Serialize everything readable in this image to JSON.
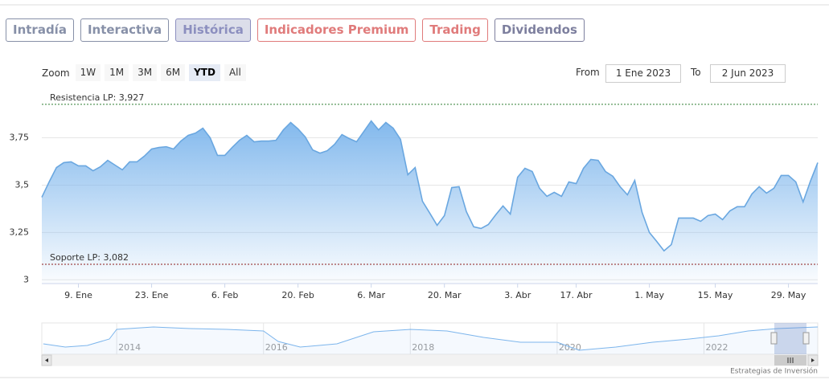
{
  "tabs": [
    {
      "label": "Intradía",
      "color": "#8790a8",
      "active": false
    },
    {
      "label": "Interactiva",
      "color": "#8790a8",
      "active": false
    },
    {
      "label": "Histórica",
      "color": "#8c8fbf",
      "active": true
    },
    {
      "label": "Indicadores Premium",
      "color": "#e07b7b",
      "active": false
    },
    {
      "label": "Trading",
      "color": "#e07b7b",
      "active": false
    },
    {
      "label": "Dividendos",
      "color": "#7d7f9e",
      "active": false
    }
  ],
  "zoom": {
    "label": "Zoom",
    "buttons": [
      "1W",
      "1M",
      "3M",
      "6M",
      "YTD",
      "All"
    ],
    "selected": 4
  },
  "range": {
    "from_label": "From",
    "from": "1 Ene 2023",
    "to_label": "To",
    "to": "2 Jun 2023"
  },
  "chart_data": {
    "type": "area",
    "color": "#7cb5ec",
    "categories": [
      null,
      null,
      null,
      null,
      null,
      "9. Ene",
      null,
      null,
      null,
      null,
      null,
      null,
      null,
      null,
      null,
      "23. Ene",
      null,
      null,
      null,
      null,
      null,
      null,
      null,
      null,
      null,
      "6. Feb",
      null,
      null,
      null,
      null,
      null,
      null,
      null,
      null,
      null,
      "20. Feb",
      null,
      null,
      null,
      null,
      null,
      null,
      null,
      null,
      null,
      "6. Mar",
      null,
      null,
      null,
      null,
      null,
      null,
      null,
      null,
      null,
      "20. Mar",
      null,
      null,
      null,
      null,
      null,
      null,
      null,
      null,
      null,
      "3. Abr",
      null,
      null,
      null,
      null,
      null,
      null,
      null,
      "17. Abr",
      null,
      null,
      null,
      null,
      null,
      null,
      null,
      null,
      null,
      "1. May",
      null,
      null,
      null,
      null,
      null,
      null,
      null,
      null,
      "15. May",
      null,
      null,
      null,
      null,
      null,
      null,
      null,
      null,
      null,
      "29. May",
      null,
      null,
      null,
      null
    ],
    "values": [
      3.436,
      3.517,
      3.593,
      3.619,
      3.623,
      3.602,
      3.602,
      3.576,
      3.597,
      3.631,
      3.606,
      3.581,
      3.623,
      3.623,
      3.653,
      3.691,
      3.699,
      3.703,
      3.691,
      3.733,
      3.763,
      3.775,
      3.801,
      3.75,
      3.657,
      3.657,
      3.699,
      3.737,
      3.763,
      3.729,
      3.733,
      3.733,
      3.737,
      3.792,
      3.831,
      3.797,
      3.754,
      3.686,
      3.669,
      3.682,
      3.716,
      3.767,
      3.746,
      3.729,
      3.784,
      3.839,
      3.792,
      3.831,
      3.801,
      3.742,
      3.555,
      3.593,
      3.415,
      3.352,
      3.288,
      3.339,
      3.487,
      3.492,
      3.36,
      3.28,
      3.271,
      3.292,
      3.343,
      3.39,
      3.347,
      3.542,
      3.589,
      3.572,
      3.483,
      3.441,
      3.462,
      3.441,
      3.517,
      3.508,
      3.589,
      3.636,
      3.631,
      3.572,
      3.547,
      3.492,
      3.449,
      3.525,
      3.356,
      3.25,
      3.203,
      3.153,
      3.186,
      3.326,
      3.326,
      3.326,
      3.309,
      3.339,
      3.347,
      3.318,
      3.364,
      3.386,
      3.386,
      3.453,
      3.492,
      3.458,
      3.483,
      3.551,
      3.551,
      3.517,
      3.411,
      3.521,
      3.619
    ],
    "ylim": [
      2.98,
      3.99
    ],
    "yticks": [
      3,
      {
        "value": 3.25,
        "label": "3,25"
      },
      {
        "value": 3.5,
        "label": "3,5"
      },
      {
        "value": 3.75,
        "label": "3,75"
      }
    ],
    "grid": true,
    "plot_lines": [
      {
        "label": "Resistencia LP: 3,927",
        "value": 3.927,
        "color": "#2f7d32"
      },
      {
        "label": "Soporte LP: 3,082",
        "value": 3.082,
        "color": "#8b1a1a"
      }
    ],
    "navigator": {
      "x": [
        2013.0,
        2013.3,
        2013.6,
        2013.9,
        2014.0,
        2014.5,
        2015.0,
        2015.5,
        2016.0,
        2016.2,
        2016.5,
        2017.0,
        2017.5,
        2018.0,
        2018.5,
        2019.0,
        2019.5,
        2020.0,
        2020.3,
        2020.8,
        2021.3,
        2021.8,
        2022.2,
        2022.6,
        2023.0,
        2023.55
      ],
      "values": [
        3.0,
        2.815,
        2.908,
        3.277,
        3.831,
        3.969,
        3.877,
        3.831,
        3.738,
        3.138,
        2.815,
        3.0,
        3.692,
        3.831,
        3.738,
        3.369,
        3.092,
        3.092,
        2.631,
        2.815,
        3.092,
        3.277,
        3.462,
        3.738,
        3.877,
        3.969
      ],
      "xlim": [
        2012.98,
        2023.55
      ],
      "ylim": [
        2.4,
        4.2
      ],
      "xticks": [
        2014,
        2016,
        2018,
        2020,
        2022
      ]
    },
    "credits": "Estrategias de Inversión"
  }
}
